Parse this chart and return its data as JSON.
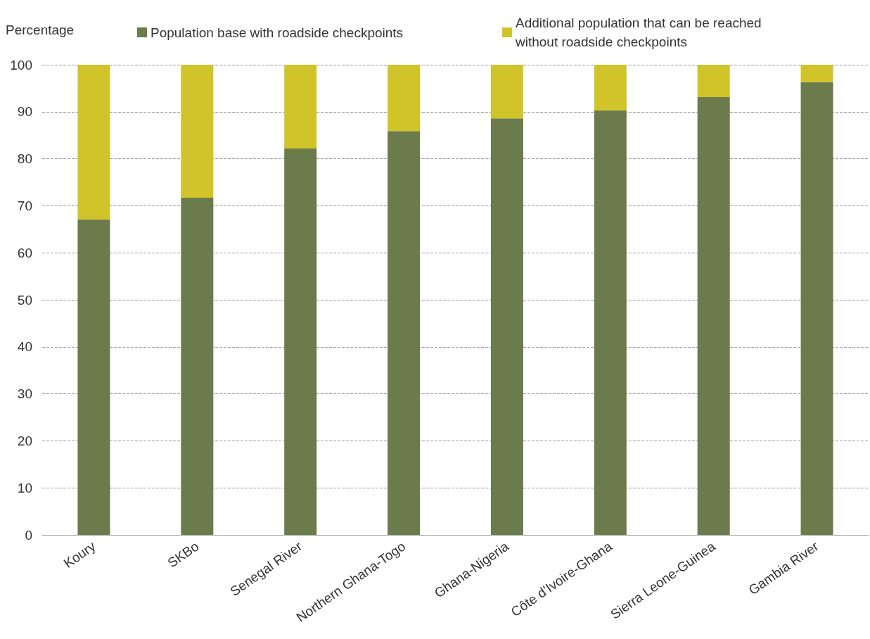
{
  "chart_data": {
    "type": "bar",
    "stacked": true,
    "ylabel": "Percentage",
    "categories": [
      "Koury",
      "SKBo",
      "Senegal River",
      "Northern Ghana-Togo",
      "Ghana-Nigeria",
      "Côte d’Ivoire-Ghana",
      "Sierra Leone-Guinea",
      "Gambia River"
    ],
    "series": [
      {
        "name": "Population base with roadside checkpoints",
        "color": "#6b7b4c",
        "values": [
          67.1,
          71.7,
          82.2,
          85.9,
          88.6,
          90.3,
          93.1,
          96.3
        ]
      },
      {
        "name": "Additional population that can be reached without roadside checkpoints",
        "color": "#d0c42a",
        "values": [
          32.9,
          28.3,
          17.8,
          14.1,
          11.4,
          9.7,
          6.9,
          3.7
        ]
      }
    ],
    "ylim": [
      0,
      100
    ],
    "yticks": [
      0,
      10,
      20,
      30,
      40,
      50,
      60,
      70,
      80,
      90,
      100
    ],
    "grid": "y",
    "legend": "top"
  }
}
